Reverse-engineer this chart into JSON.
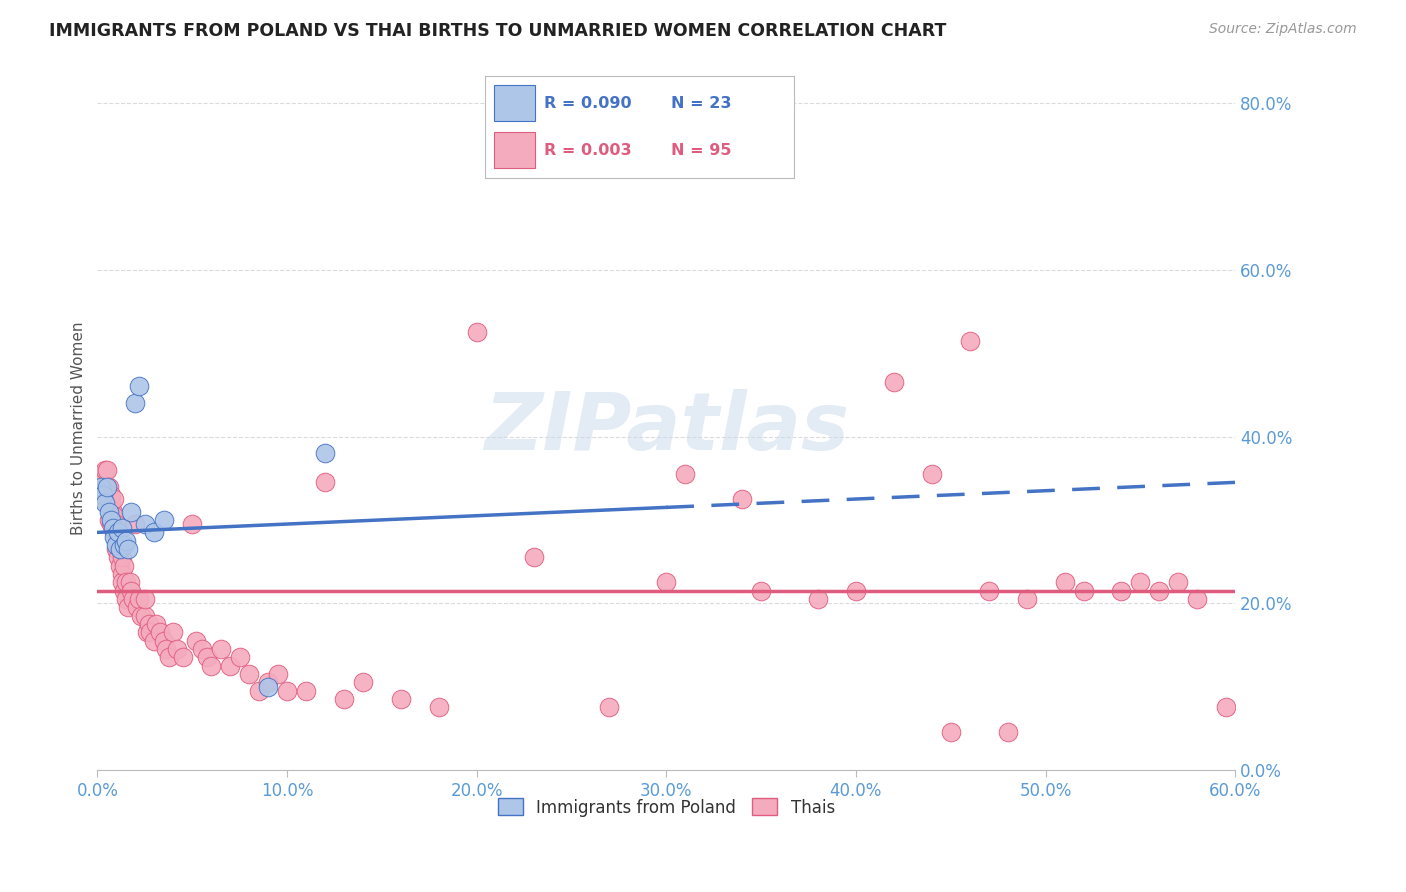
{
  "title": "IMMIGRANTS FROM POLAND VS THAI BIRTHS TO UNMARRIED WOMEN CORRELATION CHART",
  "source": "Source: ZipAtlas.com",
  "ylabel": "Births to Unmarried Women",
  "legend_label_blue": "Immigrants from Poland",
  "legend_label_pink": "Thais",
  "blue_color": "#AEC6E8",
  "pink_color": "#F4ABBE",
  "trendline_blue_color": "#4472C4",
  "trendline_pink_color": "#E05C7E",
  "background_color": "#FFFFFF",
  "grid_color": "#CCCCCC",
  "title_color": "#222222",
  "axis_color": "#5B9BD5",
  "xlim": [
    0.0,
    0.6
  ],
  "ylim": [
    0.0,
    0.82
  ],
  "blue_R": "0.090",
  "blue_N": "23",
  "pink_R": "0.003",
  "pink_N": "95",
  "blue_trend_x0": 0.0,
  "blue_trend_y0": 0.285,
  "blue_trend_x1": 0.3,
  "blue_trend_y1": 0.315,
  "pink_trend_y": 0.215,
  "blue_x": [
    0.002,
    0.003,
    0.004,
    0.005,
    0.006,
    0.007,
    0.008,
    0.009,
    0.01,
    0.011,
    0.012,
    0.013,
    0.014,
    0.015,
    0.016,
    0.018,
    0.02,
    0.022,
    0.025,
    0.03,
    0.035,
    0.12,
    0.09
  ],
  "blue_y": [
    0.34,
    0.33,
    0.32,
    0.34,
    0.31,
    0.3,
    0.29,
    0.28,
    0.27,
    0.285,
    0.265,
    0.29,
    0.27,
    0.275,
    0.265,
    0.31,
    0.44,
    0.46,
    0.295,
    0.285,
    0.3,
    0.38,
    0.1
  ],
  "pink_x": [
    0.002,
    0.003,
    0.004,
    0.004,
    0.005,
    0.005,
    0.006,
    0.006,
    0.007,
    0.007,
    0.007,
    0.008,
    0.008,
    0.009,
    0.009,
    0.009,
    0.01,
    0.01,
    0.01,
    0.011,
    0.011,
    0.012,
    0.012,
    0.013,
    0.013,
    0.013,
    0.014,
    0.014,
    0.015,
    0.015,
    0.016,
    0.017,
    0.018,
    0.019,
    0.02,
    0.021,
    0.022,
    0.023,
    0.025,
    0.025,
    0.026,
    0.027,
    0.028,
    0.03,
    0.031,
    0.033,
    0.035,
    0.036,
    0.038,
    0.04,
    0.042,
    0.045,
    0.05,
    0.052,
    0.055,
    0.058,
    0.06,
    0.065,
    0.07,
    0.075,
    0.08,
    0.085,
    0.09,
    0.095,
    0.1,
    0.11,
    0.12,
    0.13,
    0.14,
    0.16,
    0.18,
    0.2,
    0.23,
    0.27,
    0.3,
    0.35,
    0.38,
    0.42,
    0.46,
    0.49,
    0.52,
    0.55,
    0.58,
    0.31,
    0.34,
    0.4,
    0.44,
    0.47,
    0.51,
    0.54,
    0.56,
    0.57,
    0.45,
    0.48,
    0.595
  ],
  "pink_y": [
    0.345,
    0.355,
    0.36,
    0.33,
    0.36,
    0.32,
    0.34,
    0.3,
    0.32,
    0.295,
    0.33,
    0.31,
    0.29,
    0.285,
    0.305,
    0.325,
    0.265,
    0.285,
    0.295,
    0.255,
    0.27,
    0.245,
    0.265,
    0.235,
    0.255,
    0.225,
    0.245,
    0.215,
    0.225,
    0.205,
    0.195,
    0.225,
    0.215,
    0.205,
    0.295,
    0.195,
    0.205,
    0.185,
    0.185,
    0.205,
    0.165,
    0.175,
    0.165,
    0.155,
    0.175,
    0.165,
    0.155,
    0.145,
    0.135,
    0.165,
    0.145,
    0.135,
    0.295,
    0.155,
    0.145,
    0.135,
    0.125,
    0.145,
    0.125,
    0.135,
    0.115,
    0.095,
    0.105,
    0.115,
    0.095,
    0.095,
    0.345,
    0.085,
    0.105,
    0.085,
    0.075,
    0.525,
    0.255,
    0.075,
    0.225,
    0.215,
    0.205,
    0.465,
    0.515,
    0.205,
    0.215,
    0.225,
    0.205,
    0.355,
    0.325,
    0.215,
    0.355,
    0.215,
    0.225,
    0.215,
    0.215,
    0.225,
    0.045,
    0.045,
    0.075
  ]
}
